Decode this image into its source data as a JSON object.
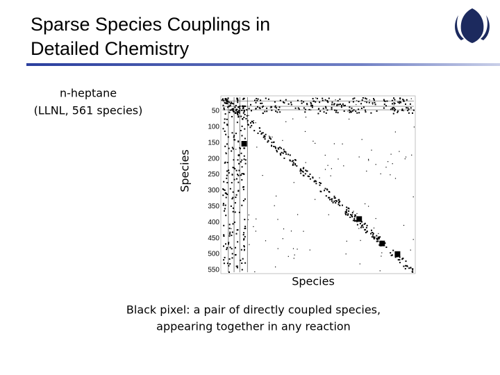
{
  "header": {
    "title_lines": [
      "Sparse Species Couplings in",
      "Detailed Chemistry"
    ]
  },
  "figure": {
    "case_lines": [
      "n-heptane",
      "(LLNL, 561 species)"
    ],
    "y_label": "Species",
    "x_label": "Species",
    "yticks": [
      50,
      100,
      150,
      200,
      250,
      300,
      350,
      400,
      450,
      500,
      550
    ]
  },
  "caption": {
    "lines": [
      "Black pixel: a pair of directly coupled species,",
      "appearing together in any reaction"
    ]
  }
}
